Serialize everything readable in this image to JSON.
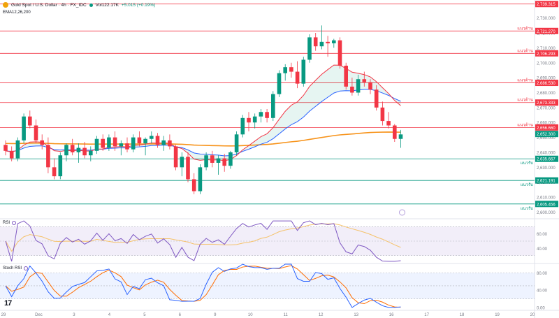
{
  "header": {
    "symbol": "Gold Spot / U.S. Dollar · 4h · FX_IDC",
    "volume": "Vol122.17K",
    "change": "+5.015 (+0.19%)",
    "indicator": "EMA12,26,200"
  },
  "panes": {
    "rsi_label": "RSI",
    "stoch_label": "Stoch RSI"
  },
  "branding": {
    "logo": "17"
  },
  "icons": {
    "logo": "gold-logo-icon",
    "status": "market-open-dot-icon",
    "settings": "settings-icon",
    "flag": "event-flag-icon"
  },
  "colors": {
    "up": "#089981",
    "down": "#f23645",
    "ema_fast": "#f23645",
    "ema_slow": "#2962ff",
    "ema_long": "#f7931a",
    "rsi": "#7e57c2",
    "rsi_ma": "#f5c26b",
    "stoch_k": "#2962ff",
    "stoch_d": "#ff6d00",
    "level_red": "#f23645",
    "level_green": "#089981"
  },
  "chart_data": {
    "type": "candlestick",
    "y_axis_ticks": [
      "2,730.000",
      "2,720.000",
      "2,710.000",
      "2,700.000",
      "2,690.000",
      "2,680.000",
      "2,670.000",
      "2,660.000",
      "2,650.000",
      "2,640.000",
      "2,630.000",
      "2,620.000",
      "2,610.000",
      "2,600.000"
    ],
    "ylim": [
      2596,
      2742
    ],
    "x_labels": [
      "29",
      "Dec",
      "3",
      "4",
      "5",
      "6",
      "9",
      "10",
      "11",
      "12",
      "13",
      "16",
      "17",
      "18",
      "19",
      "20"
    ],
    "price_levels": [
      {
        "value": 2739.315,
        "label": "2,739.315",
        "tag": "",
        "color": "red"
      },
      {
        "value": 2721.27,
        "label": "2,721.270",
        "tag": "แนวต้าน",
        "color": "red"
      },
      {
        "value": 2706.293,
        "label": "2,706.293",
        "tag": "แนวต้าน",
        "color": "red"
      },
      {
        "value": 2686.53,
        "label": "2,686.530",
        "tag": "แนวต้าน",
        "color": "red"
      },
      {
        "value": 2673.333,
        "label": "2,673.333",
        "tag": "แนวต้าน",
        "color": "red"
      },
      {
        "value": 2656.66,
        "label": "2,656.660",
        "tag": "แนวต้าน",
        "color": "red"
      },
      {
        "value": 2635.667,
        "label": "2,635.667",
        "tag": "แนวรับ",
        "color": "green"
      },
      {
        "value": 2621.191,
        "label": "2,621.191",
        "tag": "แนวรับ",
        "color": "green"
      },
      {
        "value": 2605.456,
        "label": "2,605.456",
        "tag": "แนวรับ",
        "color": "green"
      }
    ],
    "last_price": {
      "value": 2652.3,
      "label": "2,652.300"
    },
    "candles": [
      [
        2645,
        2648,
        2638,
        2641
      ],
      [
        2641,
        2644,
        2634,
        2636
      ],
      [
        2636,
        2650,
        2634,
        2648
      ],
      [
        2648,
        2666,
        2646,
        2664
      ],
      [
        2664,
        2668,
        2656,
        2658
      ],
      [
        2658,
        2662,
        2646,
        2648
      ],
      [
        2648,
        2652,
        2642,
        2645
      ],
      [
        2645,
        2650,
        2626,
        2630
      ],
      [
        2630,
        2636,
        2622,
        2624
      ],
      [
        2624,
        2640,
        2622,
        2638
      ],
      [
        2638,
        2646,
        2634,
        2645
      ],
      [
        2645,
        2649,
        2638,
        2640
      ],
      [
        2640,
        2646,
        2633,
        2643
      ],
      [
        2643,
        2647,
        2636,
        2638
      ],
      [
        2638,
        2644,
        2634,
        2641
      ],
      [
        2641,
        2651,
        2639,
        2649
      ],
      [
        2649,
        2652,
        2641,
        2643
      ],
      [
        2643,
        2652,
        2641,
        2650
      ],
      [
        2650,
        2654,
        2641,
        2644
      ],
      [
        2644,
        2648,
        2638,
        2646
      ],
      [
        2646,
        2650,
        2640,
        2642
      ],
      [
        2642,
        2652,
        2640,
        2650
      ],
      [
        2650,
        2654,
        2644,
        2646
      ],
      [
        2646,
        2650,
        2638,
        2649
      ],
      [
        2649,
        2654,
        2646,
        2651
      ],
      [
        2651,
        2653,
        2643,
        2645
      ],
      [
        2645,
        2651,
        2641,
        2648
      ],
      [
        2648,
        2652,
        2642,
        2644
      ],
      [
        2644,
        2645,
        2628,
        2630
      ],
      [
        2630,
        2640,
        2624,
        2637
      ],
      [
        2637,
        2640,
        2620,
        2622
      ],
      [
        2622,
        2626,
        2612,
        2614
      ],
      [
        2614,
        2632,
        2612,
        2630
      ],
      [
        2630,
        2640,
        2628,
        2638
      ],
      [
        2638,
        2641,
        2630,
        2633
      ],
      [
        2633,
        2638,
        2625,
        2636
      ],
      [
        2636,
        2639,
        2627,
        2631
      ],
      [
        2631,
        2641,
        2629,
        2640
      ],
      [
        2640,
        2654,
        2638,
        2652
      ],
      [
        2652,
        2665,
        2650,
        2663
      ],
      [
        2663,
        2667,
        2654,
        2660
      ],
      [
        2660,
        2666,
        2656,
        2664
      ],
      [
        2664,
        2669,
        2660,
        2667
      ],
      [
        2667,
        2669,
        2660,
        2663
      ],
      [
        2663,
        2681,
        2661,
        2679
      ],
      [
        2679,
        2695,
        2677,
        2693
      ],
      [
        2693,
        2699,
        2688,
        2697
      ],
      [
        2697,
        2700,
        2690,
        2694
      ],
      [
        2694,
        2701,
        2683,
        2686
      ],
      [
        2686,
        2704,
        2684,
        2702
      ],
      [
        2702,
        2719,
        2700,
        2717
      ],
      [
        2717,
        2720,
        2708,
        2711
      ],
      [
        2711,
        2725,
        2709,
        2714
      ],
      [
        2714,
        2718,
        2704,
        2713
      ],
      [
        2713,
        2716,
        2710,
        2715
      ],
      [
        2715,
        2717,
        2696,
        2698
      ],
      [
        2698,
        2700,
        2682,
        2684
      ],
      [
        2684,
        2690,
        2678,
        2680
      ],
      [
        2680,
        2692,
        2678,
        2689
      ],
      [
        2689,
        2694,
        2684,
        2687
      ],
      [
        2687,
        2689,
        2679,
        2682
      ],
      [
        2682,
        2685,
        2668,
        2670
      ],
      [
        2670,
        2674,
        2658,
        2661
      ],
      [
        2661,
        2667,
        2656,
        2658
      ],
      [
        2658,
        2659,
        2647,
        2649
      ],
      [
        2649,
        2655,
        2643,
        2652
      ]
    ]
  },
  "rsi": {
    "ticks": [
      "60.00",
      "40.00"
    ],
    "ylim": [
      20,
      80
    ]
  },
  "stoch": {
    "ticks": [
      "80.00",
      "40.00",
      "0.00"
    ],
    "ylim": [
      -5,
      100
    ]
  }
}
